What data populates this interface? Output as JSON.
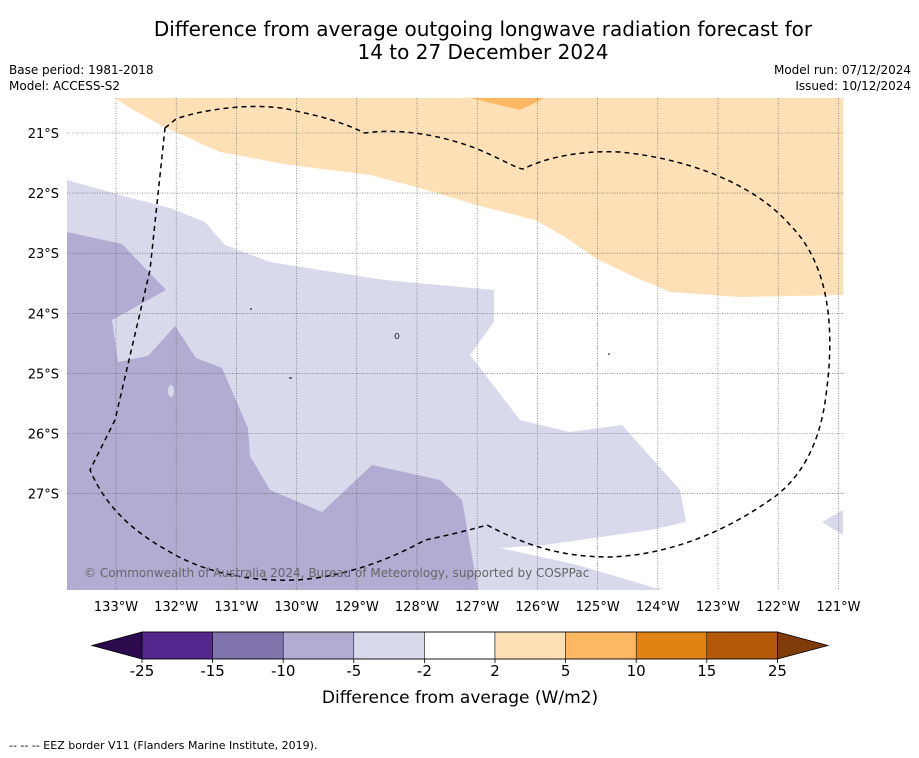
{
  "header": {
    "title_line1": "Difference from average outgoing longwave radiation forecast for",
    "title_line2": "14 to 27 December 2024",
    "base_period": "Base period: 1981-2018",
    "model": "Model: ACCESS-S2",
    "model_run": "Model run: 07/12/2024",
    "issued": "Issued: 10/12/2024"
  },
  "map": {
    "lat_labels": [
      "21°S",
      "22°S",
      "23°S",
      "24°S",
      "25°S",
      "26°S",
      "27°S"
    ],
    "lon_labels": [
      "133°W",
      "132°W",
      "131°W",
      "130°W",
      "129°W",
      "128°W",
      "127°W",
      "126°W",
      "125°W",
      "124°W",
      "123°W",
      "122°W",
      "121°W"
    ],
    "copyright": "© Commonwealth of Australia 2024, Bureau of Meteorology, supported by COSPPac",
    "colors": {
      "below_m25": "#2d0a4e",
      "m25_m15": "#54278f",
      "m15_m10": "#8073ac",
      "m10_m5": "#b2abd2",
      "m5_m2": "#d8daeb",
      "m2_2": "#ffffff",
      "p2_5": "#fee0b6",
      "p5_10": "#fdb863",
      "p10_15": "#e08214",
      "p15_25": "#b35806",
      "above_25": "#7f3b08"
    }
  },
  "colorbar": {
    "ticks": [
      "-25",
      "-15",
      "-10",
      "-5",
      "-2",
      "2",
      "5",
      "10",
      "15",
      "25"
    ],
    "label": "Difference from average (W/m2)"
  },
  "footer": {
    "legend": "--  --  -- EEZ border V11 (Flanders Marine Institute, 2019)."
  }
}
